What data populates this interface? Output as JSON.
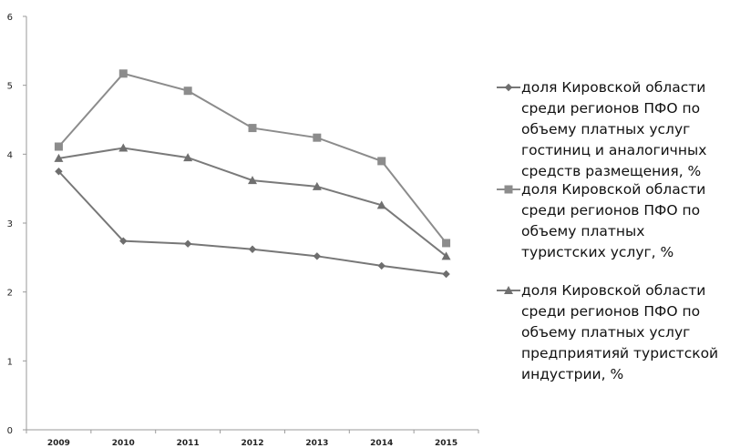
{
  "chart_data": {
    "type": "line",
    "title": "",
    "xlabel": "",
    "ylabel": "",
    "x": [
      "2009",
      "2010",
      "2011",
      "2012",
      "2013",
      "2014",
      "2015"
    ],
    "ylim": [
      0,
      6
    ],
    "yticks": [
      "0",
      "1",
      "2",
      "3",
      "4",
      "5",
      "6"
    ],
    "grid": false,
    "legend": "right",
    "series": [
      {
        "name_lines": [
          "доля Кировской области",
          "среди регионов ПФО по",
          "объему платных услуг",
          "гостиниц и аналогичных",
          "средств размещения, %"
        ],
        "marker": "diamond",
        "color": "#777777",
        "values": [
          3.75,
          2.74,
          2.7,
          2.62,
          2.52,
          2.38,
          2.26
        ]
      },
      {
        "name_lines": [
          "доля Кировской области",
          "среди регионов ПФО по",
          "объему платных",
          "туристских услуг, %"
        ],
        "marker": "square",
        "color": "#8c8c8c",
        "values": [
          4.11,
          5.17,
          4.92,
          4.38,
          4.24,
          3.9,
          2.71
        ]
      },
      {
        "name_lines": [
          "доля Кировской области",
          "среди регионов ПФО по",
          "объему платных услуг",
          "предприятияй туристской",
          "индустрии, %"
        ],
        "marker": "triangle",
        "color": "#7a7a7a",
        "values": [
          3.94,
          4.09,
          3.95,
          3.62,
          3.53,
          3.26,
          2.52
        ]
      }
    ]
  }
}
